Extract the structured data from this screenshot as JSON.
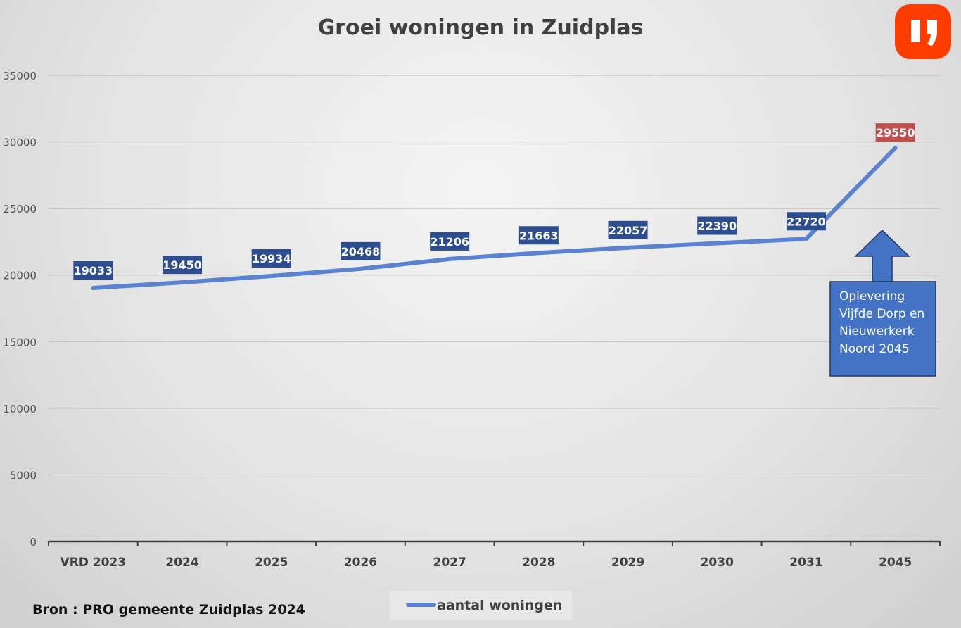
{
  "chart_data": {
    "type": "line",
    "title": "Groei woningen in Zuidplas",
    "categories": [
      "VRD 2023",
      "2024",
      "2025",
      "2026",
      "2027",
      "2028",
      "2029",
      "2030",
      "2031",
      "2045"
    ],
    "series": [
      {
        "name": "aantal woningen",
        "values": [
          19033,
          19450,
          19934,
          20468,
          21206,
          21663,
          22057,
          22390,
          22720,
          29550
        ],
        "color": "#5b82cf"
      }
    ],
    "ylim": [
      0,
      35000
    ],
    "yticks": [
      0,
      5000,
      10000,
      15000,
      20000,
      25000,
      30000,
      35000
    ],
    "grid": true,
    "legend": "bottom",
    "label_color": "#2e4d8f",
    "highlight_label_color": "#c0504d",
    "annotation": "Oplevering Vijfde Dorp en Nieuwerkerk Noord 2045",
    "annotation_lines": [
      "Oplevering",
      "Vijfde Dorp en",
      "Nieuwerkerk",
      "Noord 2045"
    ],
    "source": "Bron : PRO gemeente Zuidplas 2024",
    "logo_text": "I,",
    "logo_color": "#ff3c00"
  }
}
